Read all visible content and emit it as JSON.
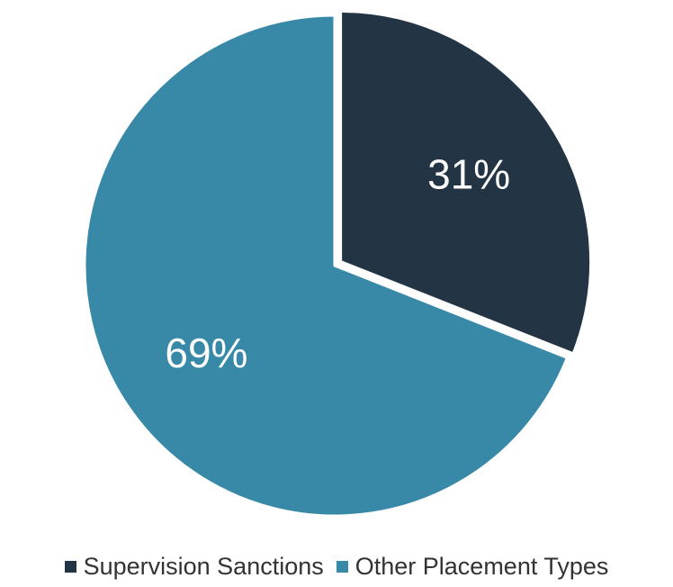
{
  "chart_data": {
    "type": "pie",
    "slices": [
      {
        "name": "Supervision Sanctions",
        "value": 31,
        "label": "31%",
        "color": "#233444",
        "exploded": true
      },
      {
        "name": "Other Placement Types",
        "value": 69,
        "label": "69%",
        "color": "#3789a7",
        "exploded": false
      }
    ],
    "legend_position": "bottom",
    "start_angle_deg": 0
  },
  "legend": {
    "items": [
      {
        "label": "Supervision Sanctions",
        "color": "#233444"
      },
      {
        "label": "Other Placement Types",
        "color": "#3789a7"
      }
    ]
  }
}
